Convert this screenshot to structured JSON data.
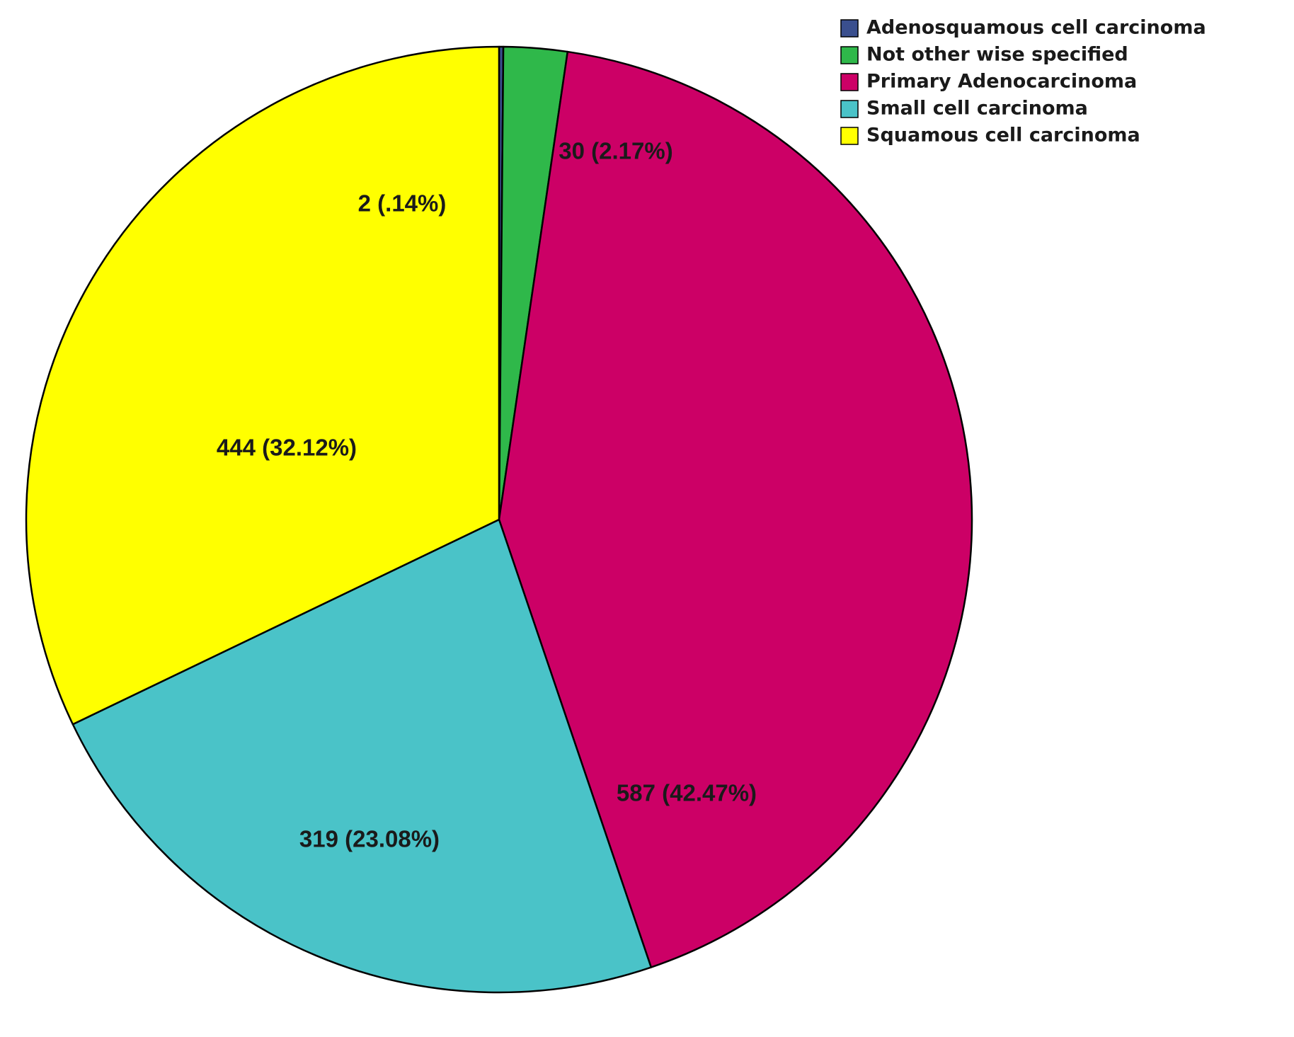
{
  "chart_data": {
    "type": "pie",
    "title": "",
    "start_angle_deg": 0,
    "direction": "clockwise",
    "legend_position": "top-right",
    "slices": [
      {
        "name": "Adenosquamous cell carcinoma",
        "value": 2,
        "percent": 0.14,
        "label": "2 (.14%)",
        "color": "#3a4f8e"
      },
      {
        "name": "Not other wise specified",
        "value": 30,
        "percent": 2.17,
        "label": "30 (2.17%)",
        "color": "#2fb84a"
      },
      {
        "name": "Primary Adenocarcinoma",
        "value": 587,
        "percent": 42.47,
        "label": "587 (42.47%)",
        "color": "#cc0066"
      },
      {
        "name": "Small cell carcinoma",
        "value": 319,
        "percent": 23.08,
        "label": "319 (23.08%)",
        "color": "#4ac3c8"
      },
      {
        "name": "Squamous cell carcinoma",
        "value": 444,
        "percent": 32.12,
        "label": "444 (32.12%)",
        "color": "#ffff00"
      }
    ]
  }
}
